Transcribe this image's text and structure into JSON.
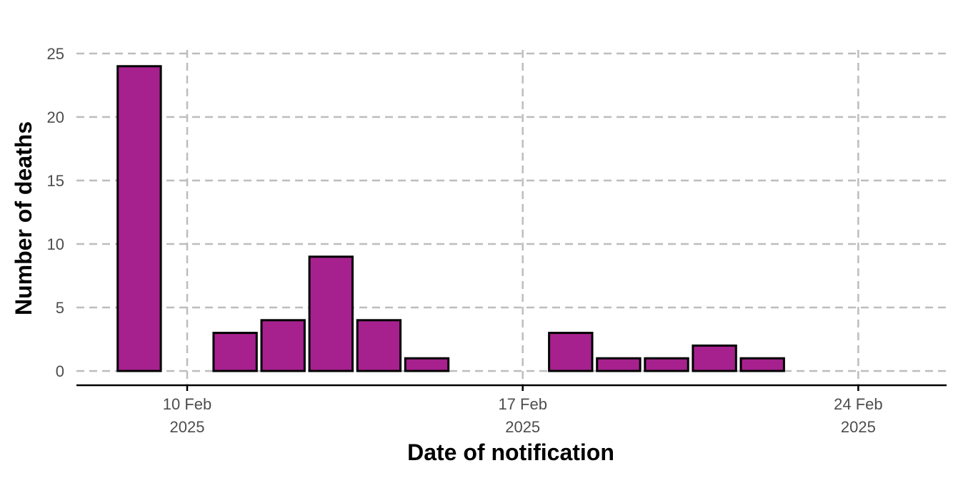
{
  "chart_data": {
    "type": "bar",
    "xlabel": "Date of notification",
    "ylabel": "Number of deaths",
    "x_type": "date",
    "bars": [
      {
        "date": "2025-02-09",
        "value": 24
      },
      {
        "date": "2025-02-11",
        "value": 3
      },
      {
        "date": "2025-02-12",
        "value": 4
      },
      {
        "date": "2025-02-13",
        "value": 9
      },
      {
        "date": "2025-02-14",
        "value": 4
      },
      {
        "date": "2025-02-15",
        "value": 1
      },
      {
        "date": "2025-02-18",
        "value": 3
      },
      {
        "date": "2025-02-19",
        "value": 1
      },
      {
        "date": "2025-02-20",
        "value": 1
      },
      {
        "date": "2025-02-21",
        "value": 2
      },
      {
        "date": "2025-02-22",
        "value": 1
      }
    ],
    "xlim": [
      "2025-02-08",
      "2025-02-26"
    ],
    "x_ticks": [
      {
        "date": "2025-02-10",
        "line1": "10 Feb",
        "line2": "2025"
      },
      {
        "date": "2025-02-17",
        "line1": "17 Feb",
        "line2": "2025"
      },
      {
        "date": "2025-02-24",
        "line1": "24 Feb",
        "line2": "2025"
      }
    ],
    "ylim": [
      0,
      25
    ],
    "y_ticks": [
      "0",
      "5",
      "10",
      "15",
      "20",
      "25"
    ],
    "grid": true,
    "legend": "none",
    "colors": {
      "bar_fill": "#a6218e",
      "bar_stroke": "#000000",
      "grid": "#bdbdbd"
    }
  }
}
